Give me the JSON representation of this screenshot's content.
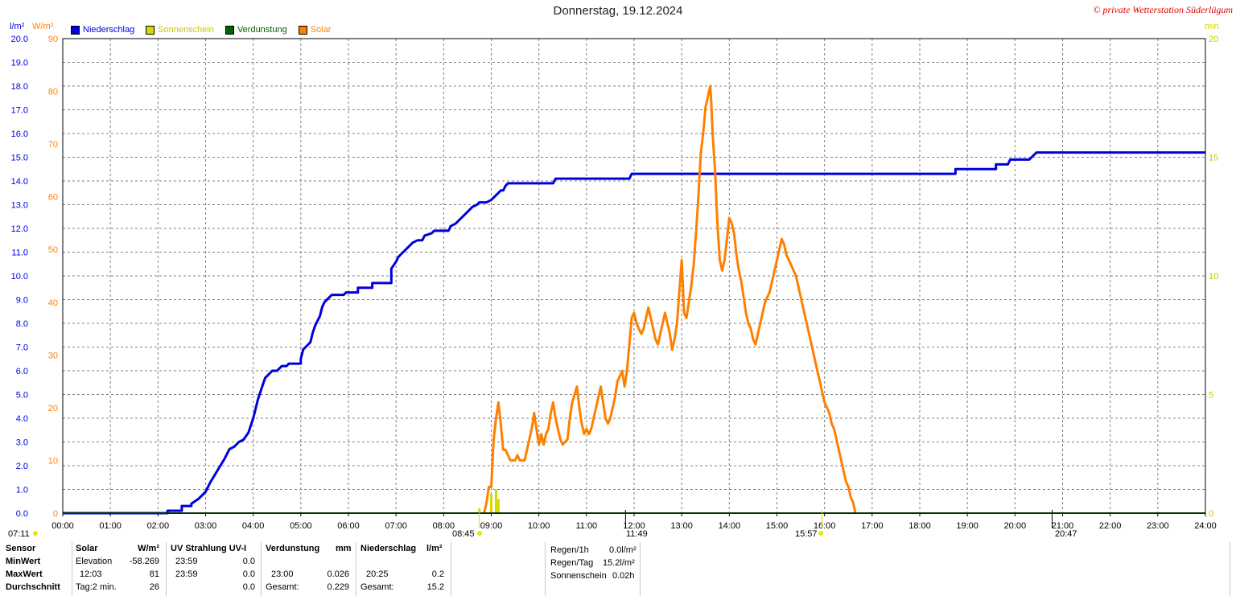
{
  "header": {
    "title": "Donnerstag, 19.12.2024",
    "copyright": "© private Wetterstation Süderlügum",
    "unit_left1": "l/m²",
    "unit_left2": "W/m²",
    "unit_right": "min"
  },
  "legend": [
    {
      "name": "Niederschlag",
      "color": "#0000dd"
    },
    {
      "name": "Sonnenschein",
      "color": "#d8d800"
    },
    {
      "name": "Verdunstung",
      "color": "#006400"
    },
    {
      "name": "Solar",
      "color": "#ff8000"
    }
  ],
  "markers": {
    "sunrise_left": "07:11",
    "sun_start": "08:45",
    "solar_max": "11:49",
    "sun_end": "15:57",
    "rain_time": "20:47"
  },
  "chart_data": {
    "type": "line",
    "title": "Donnerstag, 19.12.2024",
    "x_ticks": [
      "00:00",
      "01:00",
      "02:00",
      "03:00",
      "04:00",
      "05:00",
      "06:00",
      "07:00",
      "08:00",
      "09:00",
      "10:00",
      "11:00",
      "12:00",
      "13:00",
      "14:00",
      "15:00",
      "16:00",
      "17:00",
      "18:00",
      "19:00",
      "20:00",
      "21:00",
      "22:00",
      "23:00",
      "24:00"
    ],
    "y_left_precip_ticks": [
      "0.0",
      "1.0",
      "2.0",
      "3.0",
      "4.0",
      "5.0",
      "6.0",
      "7.0",
      "8.0",
      "9.0",
      "10.0",
      "11.0",
      "12.0",
      "13.0",
      "14.0",
      "15.0",
      "16.0",
      "17.0",
      "18.0",
      "19.0",
      "20.0"
    ],
    "y_left_solar_ticks": [
      "0",
      "10",
      "20",
      "30",
      "40",
      "50",
      "60",
      "70",
      "80",
      "90"
    ],
    "y_right_min_ticks": [
      "0",
      "5",
      "10",
      "15",
      "20"
    ],
    "ylim_precip": [
      0,
      20
    ],
    "ylim_solar": [
      0,
      90
    ],
    "ylim_sunshine": [
      0,
      20
    ],
    "grid": true,
    "series": [
      {
        "name": "Niederschlag",
        "axis": "precip",
        "color": "#0000dd",
        "points": [
          [
            0,
            0
          ],
          [
            2.2,
            0
          ],
          [
            2.2,
            0.1
          ],
          [
            2.5,
            0.1
          ],
          [
            2.5,
            0.3
          ],
          [
            2.7,
            0.3
          ],
          [
            2.7,
            0.4
          ],
          [
            2.85,
            0.6
          ],
          [
            3.0,
            0.9
          ],
          [
            3.1,
            1.3
          ],
          [
            3.25,
            1.8
          ],
          [
            3.4,
            2.3
          ],
          [
            3.5,
            2.7
          ],
          [
            3.6,
            2.8
          ],
          [
            3.7,
            3.0
          ],
          [
            3.8,
            3.1
          ],
          [
            3.9,
            3.4
          ],
          [
            4.0,
            4.0
          ],
          [
            4.1,
            4.8
          ],
          [
            4.2,
            5.4
          ],
          [
            4.25,
            5.7
          ],
          [
            4.3,
            5.8
          ],
          [
            4.4,
            6.0
          ],
          [
            4.5,
            6.0
          ],
          [
            4.55,
            6.1
          ],
          [
            4.6,
            6.2
          ],
          [
            4.7,
            6.2
          ],
          [
            4.75,
            6.3
          ],
          [
            5.0,
            6.3
          ],
          [
            5.0,
            6.5
          ],
          [
            5.05,
            6.9
          ],
          [
            5.1,
            7.0
          ],
          [
            5.2,
            7.2
          ],
          [
            5.25,
            7.6
          ],
          [
            5.3,
            7.9
          ],
          [
            5.4,
            8.3
          ],
          [
            5.45,
            8.7
          ],
          [
            5.5,
            8.9
          ],
          [
            5.55,
            9.0
          ],
          [
            5.6,
            9.1
          ],
          [
            5.65,
            9.2
          ],
          [
            5.9,
            9.2
          ],
          [
            5.95,
            9.3
          ],
          [
            6.2,
            9.3
          ],
          [
            6.2,
            9.5
          ],
          [
            6.5,
            9.5
          ],
          [
            6.5,
            9.7
          ],
          [
            6.9,
            9.7
          ],
          [
            6.9,
            10.3
          ],
          [
            7.0,
            10.6
          ],
          [
            7.05,
            10.8
          ],
          [
            7.15,
            11.0
          ],
          [
            7.25,
            11.2
          ],
          [
            7.35,
            11.4
          ],
          [
            7.45,
            11.5
          ],
          [
            7.55,
            11.5
          ],
          [
            7.6,
            11.7
          ],
          [
            7.75,
            11.8
          ],
          [
            7.8,
            11.9
          ],
          [
            8.1,
            11.9
          ],
          [
            8.15,
            12.1
          ],
          [
            8.25,
            12.2
          ],
          [
            8.35,
            12.4
          ],
          [
            8.4,
            12.5
          ],
          [
            8.5,
            12.7
          ],
          [
            8.55,
            12.8
          ],
          [
            8.6,
            12.9
          ],
          [
            8.7,
            13.0
          ],
          [
            8.75,
            13.1
          ],
          [
            8.9,
            13.1
          ],
          [
            9.0,
            13.2
          ],
          [
            9.05,
            13.3
          ],
          [
            9.15,
            13.5
          ],
          [
            9.2,
            13.6
          ],
          [
            9.25,
            13.6
          ],
          [
            9.3,
            13.8
          ],
          [
            9.35,
            13.9
          ],
          [
            10.3,
            13.9
          ],
          [
            10.35,
            14.1
          ],
          [
            11.9,
            14.1
          ],
          [
            11.95,
            14.3
          ],
          [
            18.75,
            14.3
          ],
          [
            18.75,
            14.5
          ],
          [
            19.6,
            14.5
          ],
          [
            19.6,
            14.7
          ],
          [
            19.85,
            14.7
          ],
          [
            19.9,
            14.9
          ],
          [
            20.3,
            14.9
          ],
          [
            20.35,
            15.0
          ],
          [
            20.45,
            15.2
          ],
          [
            24,
            15.2
          ]
        ]
      },
      {
        "name": "Solar",
        "axis": "solar",
        "color": "#ff8000",
        "points": [
          [
            8.85,
            0
          ],
          [
            8.9,
            2
          ],
          [
            8.95,
            5
          ],
          [
            9.0,
            5
          ],
          [
            9.05,
            14
          ],
          [
            9.1,
            18
          ],
          [
            9.15,
            21
          ],
          [
            9.2,
            17
          ],
          [
            9.25,
            12
          ],
          [
            9.3,
            12
          ],
          [
            9.35,
            11
          ],
          [
            9.4,
            10
          ],
          [
            9.5,
            10
          ],
          [
            9.55,
            11
          ],
          [
            9.6,
            10
          ],
          [
            9.7,
            10
          ],
          [
            9.75,
            12
          ],
          [
            9.8,
            14
          ],
          [
            9.85,
            16
          ],
          [
            9.9,
            19
          ],
          [
            9.95,
            16
          ],
          [
            10.0,
            13
          ],
          [
            10.05,
            15
          ],
          [
            10.1,
            13
          ],
          [
            10.15,
            15
          ],
          [
            10.2,
            16
          ],
          [
            10.25,
            19
          ],
          [
            10.3,
            21
          ],
          [
            10.35,
            18
          ],
          [
            10.4,
            16
          ],
          [
            10.45,
            14
          ],
          [
            10.5,
            13
          ],
          [
            10.6,
            14
          ],
          [
            10.65,
            18
          ],
          [
            10.7,
            21
          ],
          [
            10.8,
            24
          ],
          [
            10.85,
            20
          ],
          [
            10.9,
            17
          ],
          [
            10.95,
            15
          ],
          [
            11.0,
            16
          ],
          [
            11.05,
            15
          ],
          [
            11.1,
            16
          ],
          [
            11.15,
            18
          ],
          [
            11.2,
            20
          ],
          [
            11.25,
            22
          ],
          [
            11.3,
            24
          ],
          [
            11.35,
            21
          ],
          [
            11.4,
            18
          ],
          [
            11.45,
            17
          ],
          [
            11.5,
            18
          ],
          [
            11.55,
            20
          ],
          [
            11.6,
            22
          ],
          [
            11.65,
            25
          ],
          [
            11.7,
            26
          ],
          [
            11.75,
            27
          ],
          [
            11.8,
            24
          ],
          [
            11.85,
            27
          ],
          [
            11.9,
            32
          ],
          [
            11.95,
            37
          ],
          [
            12.0,
            38
          ],
          [
            12.05,
            36
          ],
          [
            12.1,
            35
          ],
          [
            12.15,
            34
          ],
          [
            12.2,
            35
          ],
          [
            12.25,
            37
          ],
          [
            12.3,
            39
          ],
          [
            12.35,
            37
          ],
          [
            12.4,
            35
          ],
          [
            12.45,
            33
          ],
          [
            12.5,
            32
          ],
          [
            12.55,
            34
          ],
          [
            12.6,
            36
          ],
          [
            12.65,
            38
          ],
          [
            12.7,
            36
          ],
          [
            12.75,
            34
          ],
          [
            12.8,
            31
          ],
          [
            12.85,
            33
          ],
          [
            12.9,
            36
          ],
          [
            12.95,
            42
          ],
          [
            13.0,
            48
          ],
          [
            13.02,
            44
          ],
          [
            13.05,
            38
          ],
          [
            13.1,
            37
          ],
          [
            13.15,
            40
          ],
          [
            13.2,
            43
          ],
          [
            13.25,
            47
          ],
          [
            13.3,
            53
          ],
          [
            13.35,
            60
          ],
          [
            13.4,
            68
          ],
          [
            13.45,
            72
          ],
          [
            13.5,
            77
          ],
          [
            13.55,
            79
          ],
          [
            13.6,
            81
          ],
          [
            13.62,
            78
          ],
          [
            13.65,
            72
          ],
          [
            13.7,
            65
          ],
          [
            13.75,
            55
          ],
          [
            13.8,
            48
          ],
          [
            13.85,
            46
          ],
          [
            13.9,
            48
          ],
          [
            13.95,
            52
          ],
          [
            14.0,
            56
          ],
          [
            14.05,
            55
          ],
          [
            14.1,
            53
          ],
          [
            14.15,
            49
          ],
          [
            14.2,
            46
          ],
          [
            14.25,
            44
          ],
          [
            14.3,
            41
          ],
          [
            14.35,
            38
          ],
          [
            14.4,
            36
          ],
          [
            14.45,
            35
          ],
          [
            14.5,
            33
          ],
          [
            14.55,
            32
          ],
          [
            14.6,
            34
          ],
          [
            14.65,
            36
          ],
          [
            14.7,
            38
          ],
          [
            14.75,
            40
          ],
          [
            14.8,
            41
          ],
          [
            14.85,
            42
          ],
          [
            14.9,
            44
          ],
          [
            14.95,
            46
          ],
          [
            15.0,
            48
          ],
          [
            15.05,
            50
          ],
          [
            15.1,
            52
          ],
          [
            15.15,
            51
          ],
          [
            15.2,
            49
          ],
          [
            15.25,
            48
          ],
          [
            15.3,
            47
          ],
          [
            15.35,
            46
          ],
          [
            15.4,
            45
          ],
          [
            15.45,
            43
          ],
          [
            15.5,
            41
          ],
          [
            15.55,
            39
          ],
          [
            15.6,
            37
          ],
          [
            15.65,
            35
          ],
          [
            15.7,
            33
          ],
          [
            15.75,
            31
          ],
          [
            15.8,
            29
          ],
          [
            15.85,
            27
          ],
          [
            15.9,
            25
          ],
          [
            15.95,
            23
          ],
          [
            16.0,
            21
          ],
          [
            16.05,
            20
          ],
          [
            16.1,
            19
          ],
          [
            16.15,
            17
          ],
          [
            16.2,
            16
          ],
          [
            16.25,
            14
          ],
          [
            16.3,
            12
          ],
          [
            16.35,
            10
          ],
          [
            16.4,
            8
          ],
          [
            16.45,
            6
          ],
          [
            16.5,
            5
          ],
          [
            16.55,
            3
          ],
          [
            16.6,
            2
          ],
          [
            16.65,
            0
          ]
        ]
      },
      {
        "name": "Sonnenschein",
        "axis": "sunshine",
        "color": "#d8d800",
        "bars": [
          [
            8.75,
            0.2
          ],
          [
            9.0,
            0.8
          ],
          [
            9.1,
            1.0
          ],
          [
            9.15,
            0.6
          ]
        ]
      },
      {
        "name": "Verdunstung",
        "axis": "precip",
        "color": "#006400",
        "points": [
          [
            0,
            0
          ],
          [
            24,
            0
          ]
        ]
      }
    ]
  },
  "bottom_table": {
    "sensor_label": "Sensor",
    "rows_labels": [
      "MinWert",
      "MaxWert",
      "Durchschnitt"
    ],
    "solar": {
      "header": "Solar",
      "unit": "W/m²",
      "min_label": "Elevation",
      "min_value": "-58.269",
      "max_label": "12:03",
      "max_value": "81",
      "avg_label": "Tag:2 min.",
      "avg_value": "26"
    },
    "uv": {
      "header": "UV Strahlung UV-I",
      "min_label": "23:59",
      "min_value": "0.0",
      "max_label": "23:59",
      "max_value": "0.0",
      "avg_value": "0.0"
    },
    "verdunstung": {
      "header": "Verdunstung",
      "unit": "mm",
      "max_label": "23:00",
      "max_value": "0.026",
      "total_label": "Gesamt:",
      "total_value": "0.229"
    },
    "niederschlag": {
      "header": "Niederschlag",
      "unit": "l/m²",
      "max_label": "20:25",
      "max_value": "0.2",
      "total_label": "Gesamt:",
      "total_value": "15.2"
    },
    "summary": [
      {
        "label": "Regen/1h",
        "value": "0.0l/m²"
      },
      {
        "label": "Regen/Tag",
        "value": "15.2l/m²"
      },
      {
        "label": "Sonnenschein",
        "value": "0.02h"
      }
    ]
  }
}
